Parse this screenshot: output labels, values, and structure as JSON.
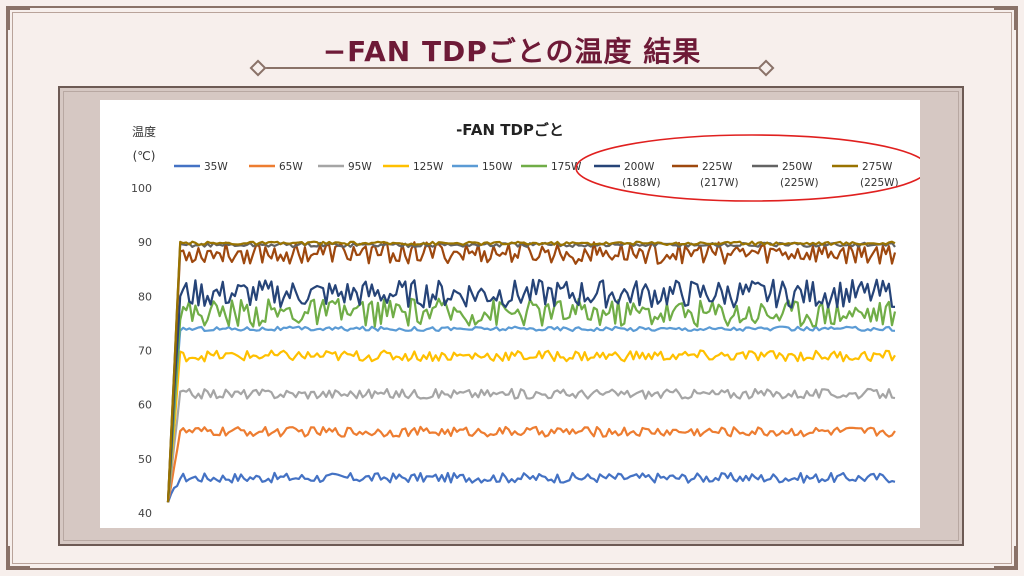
{
  "slide": {
    "title": "−FAN TDPごとの温度 結果"
  },
  "colors": {
    "title": "#6e1a37",
    "frame": "#8a7268",
    "highlight_ellipse": "#e0201f"
  },
  "chart_data": {
    "type": "line",
    "title": "-FAN TDPごと",
    "ylabel": "温度",
    "yunit": "(℃)",
    "ylim": [
      40,
      100
    ],
    "yticks": [
      40,
      50,
      60,
      70,
      80,
      90,
      100
    ],
    "grid": false,
    "legend_position": "top",
    "highlight": "legend entries 200W–275W circled in red",
    "samples": 240,
    "series": [
      {
        "name": "35W",
        "note": "",
        "color": "#4472c4",
        "start": 42,
        "level": 46.5,
        "noise": 0.9
      },
      {
        "name": "65W",
        "note": "",
        "color": "#ed7d31",
        "start": 42,
        "level": 55,
        "noise": 0.9
      },
      {
        "name": "95W",
        "note": "",
        "color": "#a5a5a5",
        "start": 42,
        "level": 62,
        "noise": 0.9
      },
      {
        "name": "125W",
        "note": "",
        "color": "#ffc000",
        "start": 42,
        "level": 69,
        "noise": 1.0
      },
      {
        "name": "150W",
        "note": "",
        "color": "#5b9bd5",
        "start": 42,
        "level": 74,
        "noise": 0.4
      },
      {
        "name": "175W",
        "note": "",
        "color": "#70ad47",
        "start": 42,
        "level": 77,
        "noise": 2.6
      },
      {
        "name": "200W",
        "note": "(188W)",
        "color": "#264478",
        "start": 42,
        "level": 80.5,
        "noise": 2.6
      },
      {
        "name": "225W",
        "note": "(217W)",
        "color": "#9e480e",
        "start": 42,
        "level": 88,
        "noise": 2.0
      },
      {
        "name": "250W",
        "note": "(225W)",
        "color": "#636363",
        "start": 42,
        "level": 89.5,
        "noise": 0.4
      },
      {
        "name": "275W",
        "note": "(225W)",
        "color": "#997300",
        "start": 42,
        "level": 89.8,
        "noise": 0.3
      }
    ]
  }
}
